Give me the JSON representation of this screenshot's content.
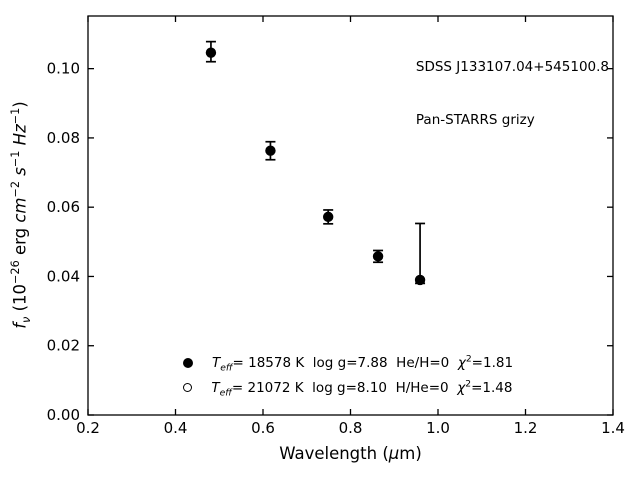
{
  "figure": {
    "bg": "#ffffff",
    "fg": "#000000"
  },
  "annotation": {
    "line1": "SDSS J133107.04+545100.8",
    "line2": "Pan-STARRS grizy"
  },
  "axes": {
    "xlabel": {
      "pre": "Wavelength (",
      "mu": "μ",
      "post": "m)"
    },
    "ylabel": {
      "f": "f",
      "nu": "ν",
      "t1": " (10",
      "s1": "−26",
      "t2": " erg ",
      "cm": "cm",
      "s2": "−2",
      "sp1": " ",
      "s": "s",
      "s3": "−1",
      "sp2": " ",
      "hz": "Hz",
      "s4": "−1",
      "t3": ")"
    }
  },
  "legend": {
    "items": [
      {
        "T": "T",
        "T_sub": "eff",
        "params": "= 18578 K  log g=7.88  He/H=0  ",
        "chi": "χ",
        "chi_sup": "2",
        "chi_val": "=1.81",
        "marker": "filled-circle"
      },
      {
        "T": "T",
        "T_sub": "eff",
        "params": "= 21072 K  log g=8.10  H/He=0  ",
        "chi": "χ",
        "chi_sup": "2",
        "chi_val": "=1.48",
        "marker": "open-circle"
      }
    ]
  },
  "chart_data": {
    "type": "scatter",
    "title": "",
    "xlabel": "Wavelength (μm)",
    "ylabel": "f_ν (10⁻²⁶ erg cm⁻² s⁻¹ Hz⁻¹)",
    "xlim": [
      0.2,
      1.4
    ],
    "ylim": [
      0,
      0.1152
    ],
    "xticks": [
      0.2,
      0.4,
      0.6,
      0.8,
      1.0,
      1.2,
      1.4
    ],
    "xtick_labels": [
      "0.2",
      "0.4",
      "0.6",
      "0.8",
      "1.0",
      "1.2",
      "1.4"
    ],
    "yticks": [
      0.0,
      0.02,
      0.04,
      0.06,
      0.08,
      0.1
    ],
    "ytick_labels": [
      "0.00",
      "0.02",
      "0.04",
      "0.06",
      "0.08",
      "0.10"
    ],
    "grid": false,
    "legend_position": "lower center",
    "series": [
      {
        "name": "Pan-STARRS grizy photometry",
        "marker": "filled-circle",
        "color": "#000000",
        "points": [
          {
            "x": 0.481,
            "y": 0.1046,
            "yerr_up": 0.0032,
            "yerr_down": 0.0026
          },
          {
            "x": 0.617,
            "y": 0.0763,
            "yerr_up": 0.0026,
            "yerr_down": 0.0026
          },
          {
            "x": 0.749,
            "y": 0.0572,
            "yerr_up": 0.002,
            "yerr_down": 0.002
          },
          {
            "x": 0.863,
            "y": 0.0458,
            "yerr_up": 0.0017,
            "yerr_down": 0.0017
          },
          {
            "x": 0.959,
            "y": 0.039,
            "yerr_up": 0.0163,
            "yerr_down": 0.001
          }
        ]
      }
    ],
    "legend_entries": [
      {
        "marker": "filled-circle",
        "label": "T_eff= 18578 K  log g=7.88  He/H=0  χ²=1.81"
      },
      {
        "marker": "open-circle",
        "label": "T_eff= 21072 K  log g=8.10  H/He=0  χ²=1.48"
      }
    ]
  }
}
